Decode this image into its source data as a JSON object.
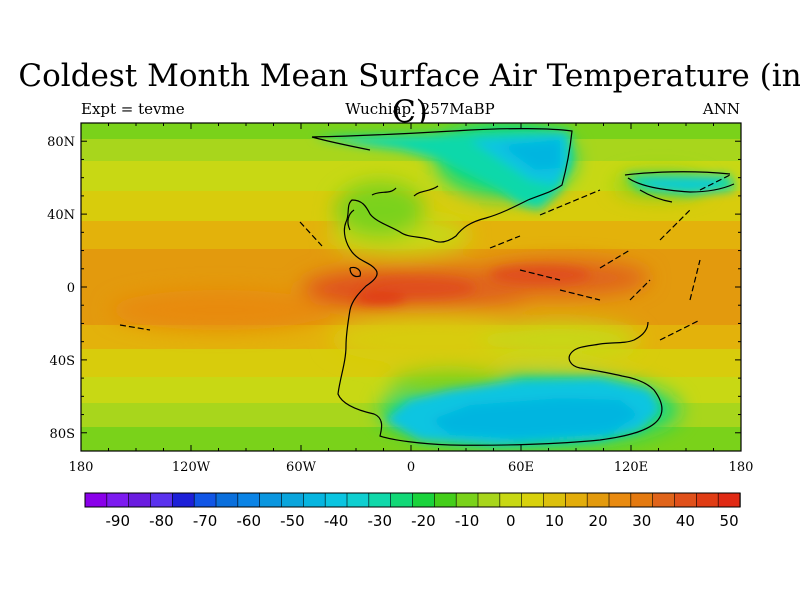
{
  "title": "Coldest Month Mean Surface Air Temperature (in C)",
  "left_label": "Expt = tevme",
  "center_label": "Wuchiap. 257MaBP",
  "right_label": "ANN",
  "map": {
    "x_ticks": [
      {
        "lon": -180,
        "label": "180"
      },
      {
        "lon": -120,
        "label": "120W"
      },
      {
        "lon": -60,
        "label": "60W"
      },
      {
        "lon": 0,
        "label": "0"
      },
      {
        "lon": 60,
        "label": "60E"
      },
      {
        "lon": 120,
        "label": "120E"
      },
      {
        "lon": 180,
        "label": "180"
      }
    ],
    "y_ticks": [
      {
        "lat": 80,
        "label": "80N"
      },
      {
        "lat": 40,
        "label": "40N"
      },
      {
        "lat": 0,
        "label": "0"
      },
      {
        "lat": -40,
        "label": "40S"
      },
      {
        "lat": -80,
        "label": "80S"
      }
    ],
    "lon_range": [
      -180,
      180
    ],
    "lat_range": [
      -90,
      90
    ]
  },
  "colorbar": {
    "labels": [
      "-90",
      "-80",
      "-70",
      "-60",
      "-50",
      "-40",
      "-30",
      "-20",
      "-10",
      "0",
      "10",
      "20",
      "30",
      "40",
      "50"
    ],
    "colors": [
      "#8a00ea",
      "#7d1bf0",
      "#6a1ce0",
      "#5a32ee",
      "#1d20d8",
      "#1156e6",
      "#0a6fdc",
      "#0b84e6",
      "#0a96df",
      "#0aa5dc",
      "#06b5e0",
      "#0bc5e1",
      "#0fcfd0",
      "#10d8aa",
      "#12d877",
      "#1ad33c",
      "#44ce1a",
      "#7ad21a",
      "#a8d61c",
      "#c8d814",
      "#d8d10c",
      "#dcc00c",
      "#e3ad0b",
      "#e39a0d",
      "#e88a10",
      "#e47a10",
      "#e0641a",
      "#e0501a",
      "#e03c14",
      "#e02a14"
    ]
  }
}
